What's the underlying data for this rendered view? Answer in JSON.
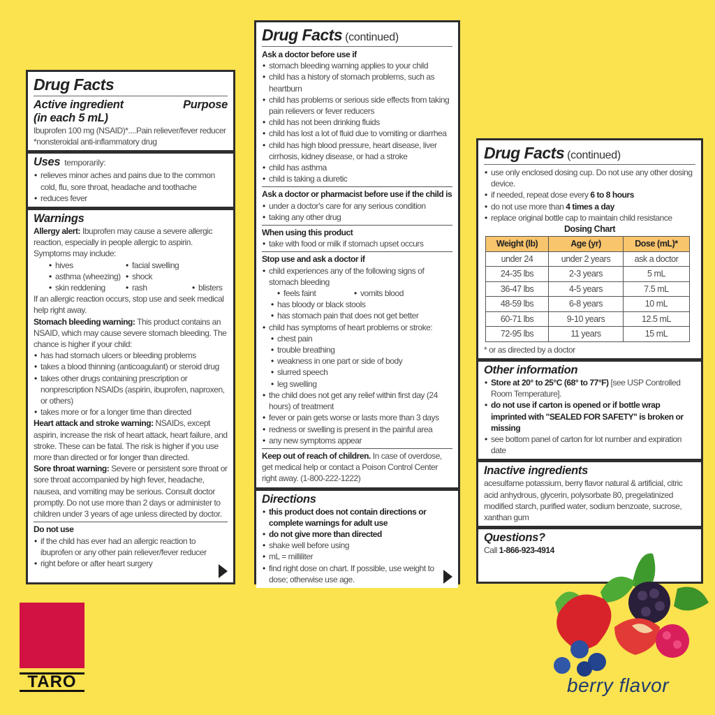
{
  "panels": [
    {
      "boxes": [
        {
          "blocks": [
            {
              "type": "title",
              "text": "Drug Facts"
            },
            {
              "type": "h",
              "text": "Active ingredient",
              "right": "Purpose"
            },
            {
              "type": "h",
              "text": "(in each 5 mL)"
            },
            {
              "type": "p",
              "text": "Ibuprofen 100 mg (NSAID)*....Pain reliever/fever reducer"
            },
            {
              "type": "p",
              "text": "*nonsteroidal anti-inflammatory drug"
            }
          ]
        },
        {
          "blocks": [
            {
              "type": "h",
              "text": "Uses",
              "suffix": "temporarily:"
            },
            {
              "type": "li",
              "text": "relieves minor aches and pains due to the common cold, flu, sore throat, headache and toothache"
            },
            {
              "type": "li",
              "text": "reduces fever"
            }
          ]
        },
        {
          "grow": true,
          "arrow": true,
          "blocks": [
            {
              "type": "h",
              "text": "Warnings"
            },
            {
              "type": "p",
              "bold": "Allergy alert:",
              "text": " Ibuprofen may cause a severe allergic reaction, especially in people allergic to aspirin."
            },
            {
              "type": "p",
              "text": "Symptoms may include:"
            },
            {
              "type": "grid",
              "rows": [
                [
                  "hives",
                  "facial swelling",
                  ""
                ],
                [
                  "asthma (wheezing)",
                  "shock",
                  ""
                ],
                [
                  "skin reddening",
                  "rash",
                  "blisters"
                ]
              ]
            },
            {
              "type": "p",
              "text": "If an allergic reaction occurs, stop use and seek medical help right away."
            },
            {
              "type": "p",
              "bold": "Stomach bleeding warning:",
              "text": " This product contains an NSAID, which may cause severe stomach bleeding. The chance is higher if your child:"
            },
            {
              "type": "li",
              "text": "has had stomach ulcers or bleeding problems"
            },
            {
              "type": "li",
              "text": "takes a blood thinning (anticoagulant) or steroid drug"
            },
            {
              "type": "li",
              "text": "takes other drugs containing prescription or nonprescription NSAIDs (aspirin, ibuprofen, naproxen, or others)"
            },
            {
              "type": "li",
              "text": "takes more or for a longer time than directed"
            },
            {
              "type": "p",
              "bold": "Heart attack and stroke warning:",
              "text": " NSAIDs, except aspirin, increase the risk of heart attack, heart failure, and stroke.  These can be fatal.  The risk is higher if you use more than directed or for longer than directed."
            },
            {
              "type": "p",
              "bold": "Sore throat warning:",
              "text": " Severe or persistent sore throat or sore throat accompanied by high fever, headache, nausea, and vomiting may be serious. Consult doctor promptly. Do not use more than 2 days or administer to children under 3 years of age unless directed by doctor."
            },
            {
              "type": "hr"
            },
            {
              "type": "sh",
              "text": "Do not use"
            },
            {
              "type": "li",
              "text": "if the child has ever had an allergic reaction to ibuprofen or any other pain reliever/fever reducer"
            },
            {
              "type": "li",
              "text": "right before or after heart surgery"
            }
          ]
        }
      ]
    },
    {
      "boxes": [
        {
          "blocks": [
            {
              "type": "title",
              "text": "Drug Facts",
              "suffix": "(continued)"
            },
            {
              "type": "sh",
              "text": "Ask a doctor before use if"
            },
            {
              "type": "li",
              "text": "stomach bleeding warning applies to your child"
            },
            {
              "type": "li",
              "text": "child has a history of stomach problems, such as heartburn"
            },
            {
              "type": "li",
              "text": "child has problems or serious side effects from taking pain relievers or fever reducers"
            },
            {
              "type": "li",
              "text": "child has not been drinking fluids"
            },
            {
              "type": "li",
              "text": "child has lost a lot of fluid due to vomiting or diarrhea"
            },
            {
              "type": "li",
              "text": "child has high blood pressure, heart disease, liver cirrhosis, kidney disease, or had a stroke"
            },
            {
              "type": "li",
              "text": "child has asthma"
            },
            {
              "type": "li",
              "text": "child is taking a diuretic"
            },
            {
              "type": "hr"
            },
            {
              "type": "sh",
              "text": "Ask a doctor or pharmacist before use if the child is"
            },
            {
              "type": "li",
              "text": "under a doctor's care for any serious condition"
            },
            {
              "type": "li",
              "text": "taking any other drug"
            },
            {
              "type": "hr"
            },
            {
              "type": "sh",
              "text": "When using this product"
            },
            {
              "type": "li",
              "text": "take with food or milk if stomach upset occurs"
            },
            {
              "type": "hr"
            },
            {
              "type": "sh",
              "text": "Stop use and ask a doctor if"
            },
            {
              "type": "li",
              "text": "child experiences any of the following signs of stomach bleeding"
            },
            {
              "type": "grid2",
              "rows": [
                [
                  "feels faint",
                  "vomits blood"
                ]
              ]
            },
            {
              "type": "li",
              "level": 2,
              "text": "has bloody or black stools"
            },
            {
              "type": "li",
              "level": 2,
              "text": "has stomach pain that does not get better"
            },
            {
              "type": "li",
              "text": "child has symptoms of heart problems or stroke:"
            },
            {
              "type": "li",
              "level": 2,
              "text": "chest pain"
            },
            {
              "type": "li",
              "level": 2,
              "text": "trouble breathing"
            },
            {
              "type": "li",
              "level": 2,
              "text": "weakness in one part or side of body"
            },
            {
              "type": "li",
              "level": 2,
              "text": "slurred speech"
            },
            {
              "type": "li",
              "level": 2,
              "text": "leg swelling"
            },
            {
              "type": "li",
              "text": "the child does not get any relief within first day (24 hours) of treatment"
            },
            {
              "type": "li",
              "text": "fever or pain gets worse or lasts more than 3 days"
            },
            {
              "type": "li",
              "text": "redness or swelling is present in the painful area"
            },
            {
              "type": "li",
              "text": "any new symptoms appear"
            },
            {
              "type": "hr"
            },
            {
              "type": "p",
              "bold": "Keep out of reach of children.",
              "text": " In case of overdose, get medical help or contact a Poison Control Center right away. (1-800-222-1222)"
            }
          ]
        },
        {
          "grow": true,
          "arrow": true,
          "blocks": [
            {
              "type": "h",
              "text": "Directions"
            },
            {
              "type": "li",
              "bold": "this product does not contain directions or complete warnings for adult use"
            },
            {
              "type": "li",
              "bold": "do not give more than directed"
            },
            {
              "type": "li",
              "text": "shake well before using"
            },
            {
              "type": "li",
              "text": "mL = milliliter"
            },
            {
              "type": "li",
              "text": "find right dose on chart. If possible, use weight to dose; otherwise use age."
            }
          ]
        }
      ]
    },
    {
      "boxes": [
        {
          "blocks": [
            {
              "type": "title",
              "text": "Drug Facts",
              "suffix": "(continued)"
            },
            {
              "type": "li",
              "text": "use only enclosed dosing cup. Do not use any other dosing device."
            },
            {
              "type": "li",
              "text": "if needed, repeat dose every ",
              "bold2": "6 to 8 hours"
            },
            {
              "type": "li",
              "text": "do not use more than ",
              "bold2": "4 times a day"
            },
            {
              "type": "li",
              "text": "replace original bottle cap to maintain child resistance"
            },
            {
              "type": "center",
              "text": "Dosing Chart"
            },
            {
              "type": "table",
              "headers": [
                "Weight (lb)",
                "Age (yr)",
                "Dose (mL)*"
              ],
              "rows": [
                [
                  "under 24",
                  "under 2 years",
                  "ask a doctor"
                ],
                [
                  "24-35 lbs",
                  "2-3 years",
                  "5 mL"
                ],
                [
                  "36-47 lbs",
                  "4-5 years",
                  "7.5 mL"
                ],
                [
                  "48-59 lbs",
                  "6-8 years",
                  "10 mL"
                ],
                [
                  "60-71 lbs",
                  "9-10 years",
                  "12.5 mL"
                ],
                [
                  "72-95 lbs",
                  "11 years",
                  "15 mL"
                ]
              ]
            },
            {
              "type": "p",
              "text": "* or as directed by a doctor"
            }
          ]
        },
        {
          "blocks": [
            {
              "type": "h",
              "text": "Other information"
            },
            {
              "type": "li",
              "bold": "Store at 20° to 25°C (68° to 77°F)",
              "text": " [see USP Controlled Room Temperature]."
            },
            {
              "type": "li",
              "bold": "do not use if carton is opened or if bottle wrap imprinted with \"SEALED FOR SAFETY\" is broken or missing"
            },
            {
              "type": "li",
              "text": "see bottom panel of carton for lot number and expiration date"
            }
          ]
        },
        {
          "blocks": [
            {
              "type": "h",
              "text": "Inactive ingredients"
            },
            {
              "type": "p",
              "text": "acesulfame potassium, berry flavor natural & artificial, citric acid anhydrous, glycerin, polysorbate 80, pregelatinized modified starch, purified water, sodium benzoate, sucrose, xanthan gum"
            }
          ]
        },
        {
          "grow": true,
          "blocks": [
            {
              "type": "h",
              "text": "Questions?"
            },
            {
              "type": "p",
              "text": "Call ",
              "bold2": "1-866-923-4914"
            }
          ]
        }
      ]
    }
  ],
  "brand": {
    "logo_text": "TARO",
    "logo_color": "#d11242"
  },
  "flavor": "berry flavor",
  "colors": {
    "background": "#fbe24f",
    "table_header": "#f8c46c",
    "flavor_text": "#1f3b6e"
  }
}
